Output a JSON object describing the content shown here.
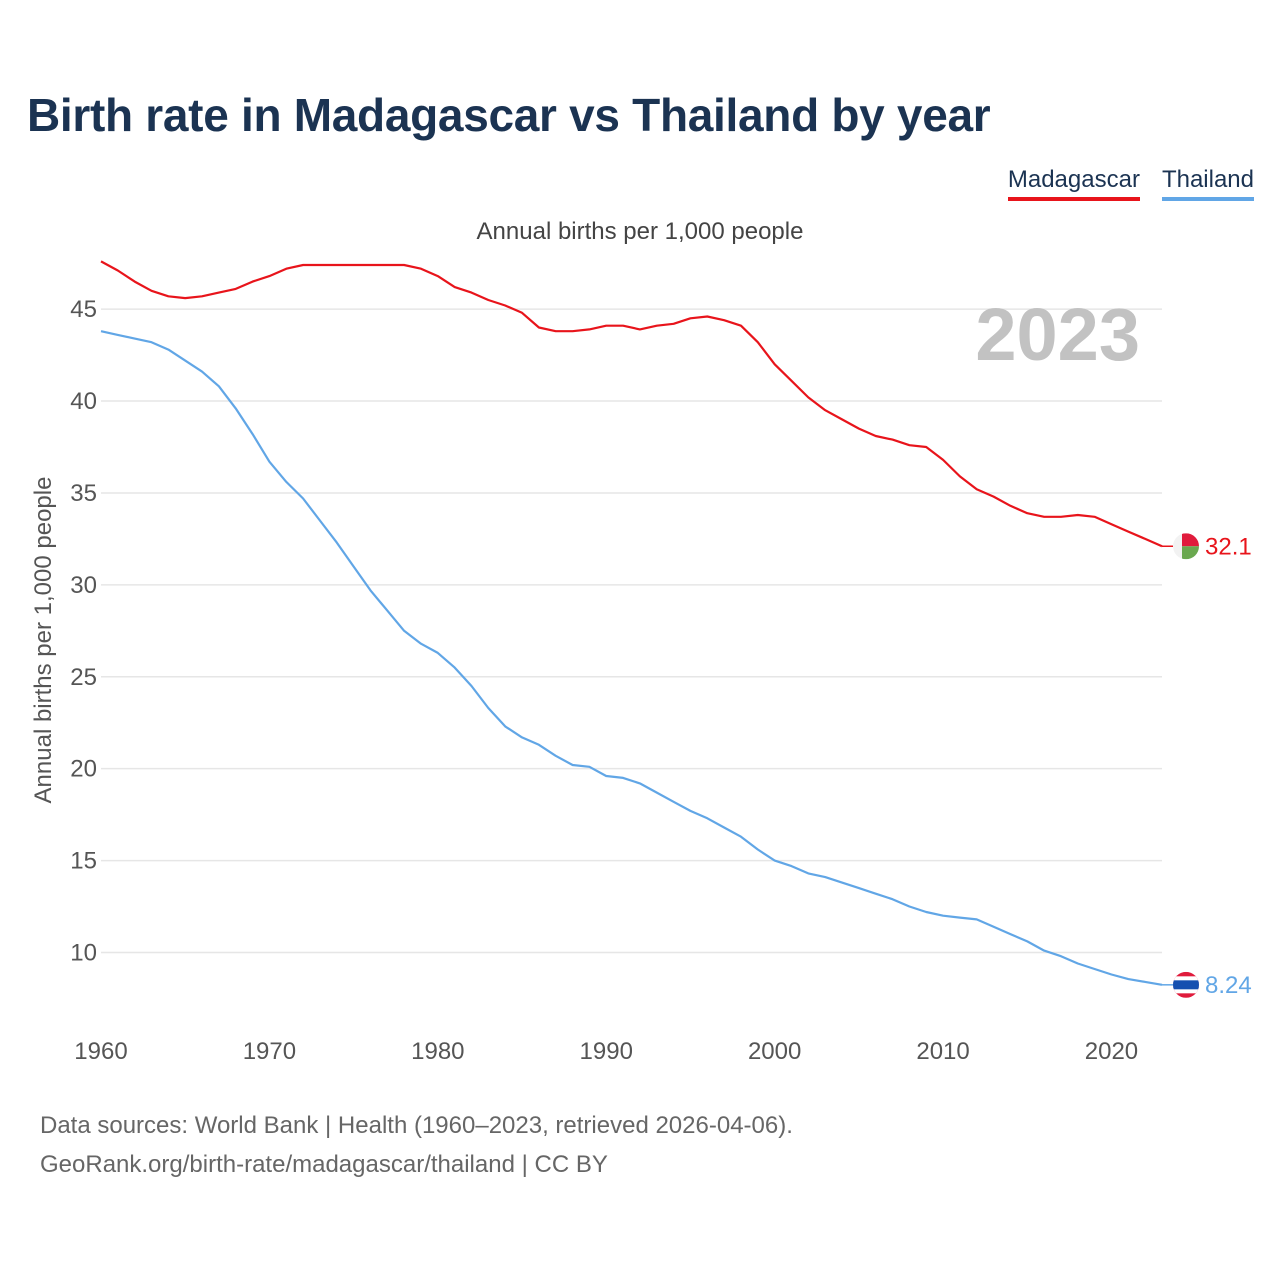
{
  "title": "Birth rate in Madagascar vs Thailand by year",
  "subtitle": "Annual births per 1,000 people",
  "legend": [
    {
      "label": "Madagascar",
      "color": "#e8141b"
    },
    {
      "label": "Thailand",
      "color": "#61a6e6"
    }
  ],
  "year_label": "2023",
  "end_labels": {
    "madagascar": "32.1",
    "thailand": "8.24"
  },
  "footer": {
    "line1": "Data sources: World Bank | Health (1960–2023, retrieved 2026-04-06).",
    "line2": "GeoRank.org/birth-rate/madagascar/thailand | CC BY"
  },
  "chart_data": {
    "type": "line",
    "title": "Birth rate in Madagascar vs Thailand by year",
    "xlabel": "",
    "ylabel": "Annual births per 1,000 people",
    "xlim": [
      1960,
      2023
    ],
    "ylim": [
      6,
      48
    ],
    "y_ticks": [
      10,
      15,
      20,
      25,
      30,
      35,
      40,
      45
    ],
    "x_ticks": [
      1960,
      1970,
      1980,
      1990,
      2000,
      2010,
      2020
    ],
    "grid": true,
    "legend_position": "top-right",
    "x": [
      1960,
      1961,
      1962,
      1963,
      1964,
      1965,
      1966,
      1967,
      1968,
      1969,
      1970,
      1971,
      1972,
      1973,
      1974,
      1975,
      1976,
      1977,
      1978,
      1979,
      1980,
      1981,
      1982,
      1983,
      1984,
      1985,
      1986,
      1987,
      1988,
      1989,
      1990,
      1991,
      1992,
      1993,
      1994,
      1995,
      1996,
      1997,
      1998,
      1999,
      2000,
      2001,
      2002,
      2003,
      2004,
      2005,
      2006,
      2007,
      2008,
      2009,
      2010,
      2011,
      2012,
      2013,
      2014,
      2015,
      2016,
      2017,
      2018,
      2019,
      2020,
      2021,
      2022,
      2023
    ],
    "series": [
      {
        "name": "Madagascar",
        "color": "#e8141b",
        "values": [
          47.6,
          47.1,
          46.5,
          46.0,
          45.7,
          45.6,
          45.7,
          45.9,
          46.1,
          46.5,
          46.8,
          47.2,
          47.4,
          47.4,
          47.4,
          47.4,
          47.4,
          47.4,
          47.4,
          47.2,
          46.8,
          46.2,
          45.9,
          45.5,
          45.2,
          44.8,
          44.0,
          43.8,
          43.8,
          43.9,
          44.1,
          44.1,
          43.9,
          44.1,
          44.2,
          44.5,
          44.6,
          44.4,
          44.1,
          43.2,
          42.0,
          41.1,
          40.2,
          39.5,
          39.0,
          38.5,
          38.1,
          37.9,
          37.6,
          37.5,
          36.8,
          35.9,
          35.2,
          34.8,
          34.3,
          33.9,
          33.7,
          33.7,
          33.8,
          33.7,
          33.3,
          32.9,
          32.5,
          32.1
        ]
      },
      {
        "name": "Thailand",
        "color": "#61a6e6",
        "values": [
          43.8,
          43.6,
          43.4,
          43.2,
          42.8,
          42.2,
          41.6,
          40.8,
          39.6,
          38.2,
          36.7,
          35.6,
          34.7,
          33.5,
          32.3,
          31.0,
          29.7,
          28.6,
          27.5,
          26.8,
          26.3,
          25.5,
          24.5,
          23.3,
          22.3,
          21.7,
          21.3,
          20.7,
          20.2,
          20.1,
          19.6,
          19.5,
          19.2,
          18.7,
          18.2,
          17.7,
          17.3,
          16.8,
          16.3,
          15.6,
          15.0,
          14.7,
          14.3,
          14.1,
          13.8,
          13.5,
          13.2,
          12.9,
          12.5,
          12.2,
          12.0,
          11.9,
          11.8,
          11.4,
          11.0,
          10.6,
          10.1,
          9.8,
          9.4,
          9.1,
          8.8,
          8.55,
          8.4,
          8.24
        ]
      }
    ]
  }
}
